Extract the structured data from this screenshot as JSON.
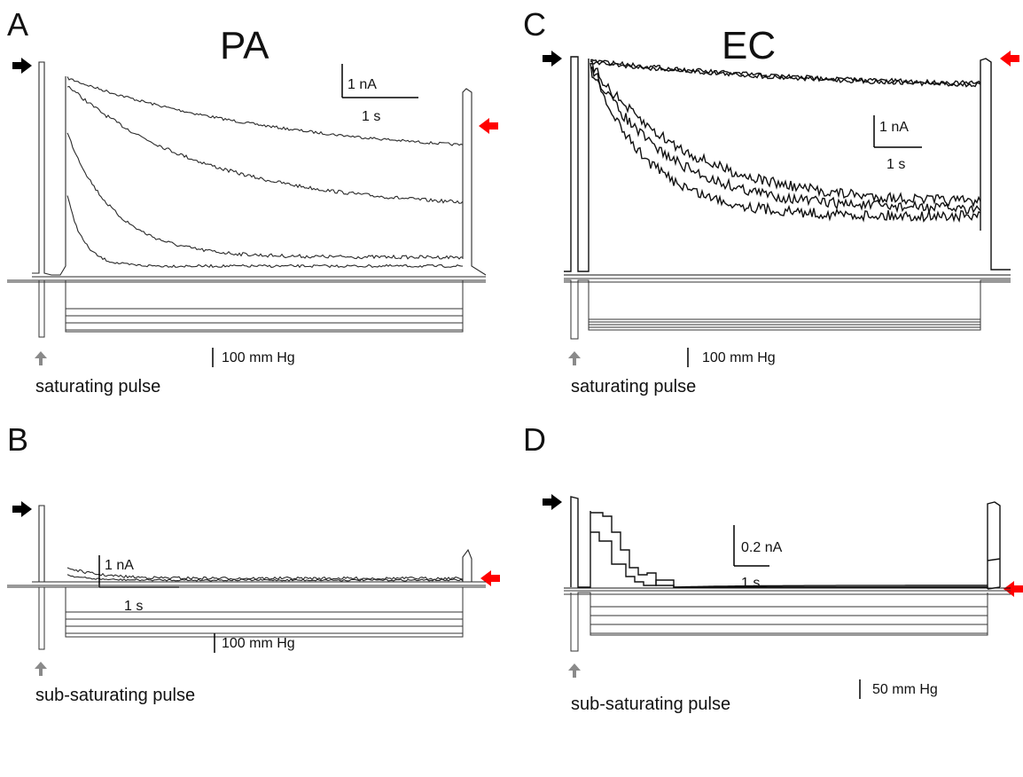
{
  "panels": {
    "A": {
      "letter": "A",
      "title": "PA",
      "current_scale": {
        "current": "1 nA",
        "time": "1 s"
      },
      "pressure_scale": "100 mm Hg",
      "pulse_label": "saturating pulse",
      "steps": 4
    },
    "B": {
      "letter": "B",
      "current_scale": {
        "current": "1 nA",
        "time": "1 s"
      },
      "pressure_scale": "100 mm Hg",
      "pulse_label": "sub-saturating pulse",
      "steps": 4
    },
    "C": {
      "letter": "C",
      "title": "EC",
      "current_scale": {
        "current": "1 nA",
        "time": "1 s"
      },
      "pressure_scale": "100 mm Hg",
      "pulse_label": "saturating pulse",
      "steps": 4
    },
    "D": {
      "letter": "D",
      "current_scale": {
        "current": "0.2 nA",
        "time": "1 s"
      },
      "pressure_scale": "50 mm Hg",
      "pulse_label": "sub-saturating pulse",
      "steps": 4
    }
  },
  "colors": {
    "trace": "#1a1a1a",
    "arrow_black": "#000000",
    "arrow_red": "#ff0000",
    "arrow_gray": "#8a8a8a"
  },
  "icons": [
    "black-arrow-icon",
    "red-arrow-icon",
    "gray-up-arrow-icon"
  ]
}
